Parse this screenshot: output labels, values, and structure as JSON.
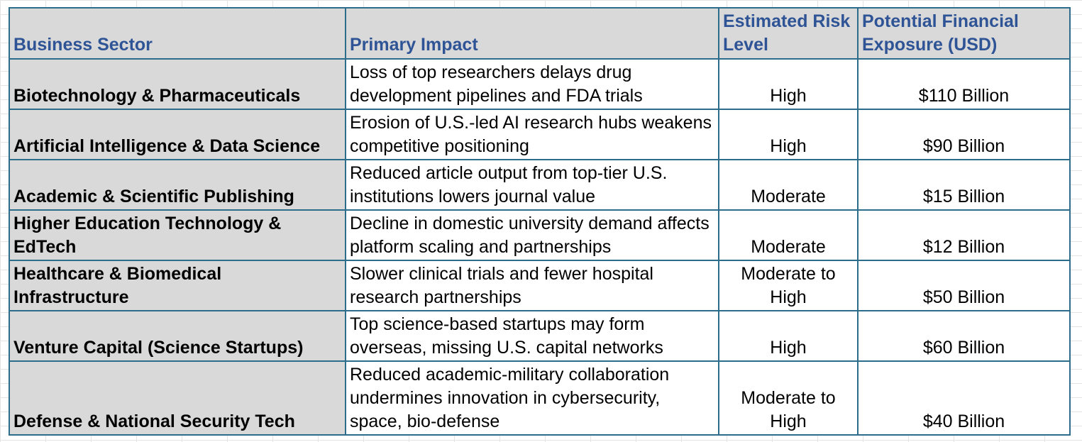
{
  "table": {
    "headers": {
      "sector": "Business Sector",
      "impact": "Primary Impact",
      "risk": "Estimated Risk Level",
      "exposure": "Potential Financial Exposure (USD)"
    },
    "rows": [
      {
        "sector": "Biotechnology & Pharmaceuticals",
        "impact": "Loss of top researchers delays drug development pipelines and FDA trials",
        "risk": "High",
        "exposure": "$110 Billion"
      },
      {
        "sector": "Artificial Intelligence & Data Science",
        "impact": "Erosion of U.S.-led AI research hubs weakens competitive positioning",
        "risk": "High",
        "exposure": "$90 Billion"
      },
      {
        "sector": "Academic & Scientific Publishing",
        "impact": "Reduced article output from top-tier U.S. institutions lowers journal value",
        "risk": "Moderate",
        "exposure": "$15 Billion"
      },
      {
        "sector": "Higher Education Technology & EdTech",
        "impact": "Decline in domestic university demand affects platform scaling and partnerships",
        "risk": "Moderate",
        "exposure": "$12 Billion"
      },
      {
        "sector": "Healthcare & Biomedical Infrastructure",
        "impact": "Slower clinical trials and fewer hospital research partnerships",
        "risk": "Moderate to High",
        "exposure": "$50 Billion"
      },
      {
        "sector": "Venture Capital (Science Startups)",
        "impact": "Top science-based startups may form overseas, missing U.S. capital networks",
        "risk": "High",
        "exposure": "$60 Billion"
      },
      {
        "sector": "Defense & National Security Tech",
        "impact": "Reduced academic-military collaboration undermines innovation in cybersecurity, space, bio-defense",
        "risk": "Moderate to High",
        "exposure": "$40 Billion"
      }
    ]
  },
  "colors": {
    "header_text": "#2f5496",
    "border": "#2e6c8c",
    "shaded_cell": "#d9d9d9"
  }
}
